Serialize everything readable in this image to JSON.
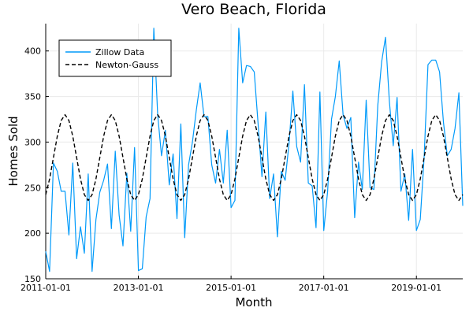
{
  "chart_data": {
    "type": "line",
    "title": "Vero Beach, Florida",
    "xlabel": "Month",
    "ylabel": "Homes Sold",
    "x_start": "2011-01-01",
    "x_end": "2019-12-01",
    "xlim": [
      "2011-01-01",
      "2020-01-01"
    ],
    "ylim": [
      150,
      430
    ],
    "x_ticks": [
      "2011-01-01",
      "2013-01-01",
      "2015-01-01",
      "2017-01-01",
      "2019-01-01"
    ],
    "y_ticks": [
      150,
      200,
      250,
      300,
      350,
      400
    ],
    "grid": true,
    "legend_position": "top-left",
    "series": [
      {
        "name": "Zillow Data",
        "style": "solid",
        "color": "#009AFA",
        "values": [
          180,
          158,
          277,
          268,
          246,
          246,
          198,
          277,
          172,
          207,
          178,
          265,
          158,
          215,
          245,
          258,
          276,
          205,
          290,
          220,
          186,
          266,
          202,
          294,
          159,
          161,
          218,
          238,
          425,
          330,
          285,
          313,
          253,
          287,
          216,
          320,
          195,
          275,
          300,
          335,
          365,
          328,
          328,
          275,
          255,
          292,
          255,
          313,
          228,
          236,
          425,
          365,
          384,
          383,
          377,
          320,
          262,
          333,
          238,
          265,
          196,
          268,
          258,
          298,
          356,
          295,
          278,
          363,
          255,
          252,
          206,
          355,
          203,
          246,
          325,
          350,
          389,
          330,
          315,
          327,
          217,
          278,
          248,
          346,
          250,
          248,
          340,
          388,
          415,
          345,
          296,
          349,
          246,
          265,
          214,
          292,
          203,
          215,
          283,
          385,
          390,
          390,
          377,
          322,
          285,
          292,
          315,
          354,
          230
        ]
      },
      {
        "name": "Newton-Gauss",
        "style": "dashed",
        "color": "#000000",
        "fit": {
          "mean": 283,
          "amplitude": 47,
          "period_months": 12,
          "peak_month": 5
        },
        "values": []
      }
    ]
  }
}
